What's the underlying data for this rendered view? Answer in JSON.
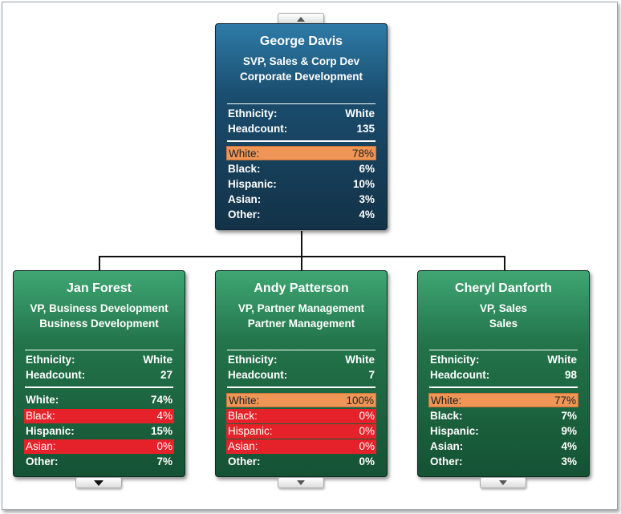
{
  "root": {
    "name": "George Davis",
    "title": "SVP, Sales & Corp Dev",
    "department": "Corporate Development",
    "ethnicity_label": "Ethnicity:",
    "ethnicity_value": "White",
    "headcount_label": "Headcount:",
    "headcount_value": "135",
    "breakdown": [
      {
        "label": "White:",
        "value": "78%",
        "highlight": "orange"
      },
      {
        "label": "Black:",
        "value": "6%",
        "highlight": "none"
      },
      {
        "label": "Hispanic:",
        "value": "10%",
        "highlight": "none"
      },
      {
        "label": "Asian:",
        "value": "3%",
        "highlight": "none"
      },
      {
        "label": "Other:",
        "value": "4%",
        "highlight": "none"
      }
    ]
  },
  "children": [
    {
      "name": "Jan Forest",
      "title": "VP, Business Development",
      "department": "Business Development",
      "ethnicity_label": "Ethnicity:",
      "ethnicity_value": "White",
      "headcount_label": "Headcount:",
      "headcount_value": "27",
      "breakdown": [
        {
          "label": "White:",
          "value": "74%",
          "highlight": "none"
        },
        {
          "label": "Black:",
          "value": "4%",
          "highlight": "red"
        },
        {
          "label": "Hispanic:",
          "value": "15%",
          "highlight": "none"
        },
        {
          "label": "Asian:",
          "value": "0%",
          "highlight": "red"
        },
        {
          "label": "Other:",
          "value": "7%",
          "highlight": "none"
        }
      ]
    },
    {
      "name": "Andy Patterson",
      "title": "VP, Partner Management",
      "department": "Partner Management",
      "ethnicity_label": "Ethnicity:",
      "ethnicity_value": "White",
      "headcount_label": "Headcount:",
      "headcount_value": "7",
      "breakdown": [
        {
          "label": "White:",
          "value": "100%",
          "highlight": "orange"
        },
        {
          "label": "Black:",
          "value": "0%",
          "highlight": "red"
        },
        {
          "label": "Hispanic:",
          "value": "0%",
          "highlight": "red"
        },
        {
          "label": "Asian:",
          "value": "0%",
          "highlight": "red"
        },
        {
          "label": "Other:",
          "value": "0%",
          "highlight": "none"
        }
      ]
    },
    {
      "name": "Cheryl Danforth",
      "title": "VP, Sales",
      "department": "Sales",
      "ethnicity_label": "Ethnicity:",
      "ethnicity_value": "White",
      "headcount_label": "Headcount:",
      "headcount_value": "98",
      "breakdown": [
        {
          "label": "White:",
          "value": "77%",
          "highlight": "orange"
        },
        {
          "label": "Black:",
          "value": "7%",
          "highlight": "none"
        },
        {
          "label": "Hispanic:",
          "value": "9%",
          "highlight": "none"
        },
        {
          "label": "Asian:",
          "value": "4%",
          "highlight": "none"
        },
        {
          "label": "Other:",
          "value": "3%",
          "highlight": "none"
        }
      ]
    }
  ],
  "icons": {
    "expand_up": "chevron-up-icon",
    "expand_down": "chevron-down-icon"
  },
  "colors": {
    "root_card": "#1a4d6e",
    "child_card": "#23744a",
    "highlight_majority": "#ef9555",
    "highlight_low": "#e52229"
  }
}
